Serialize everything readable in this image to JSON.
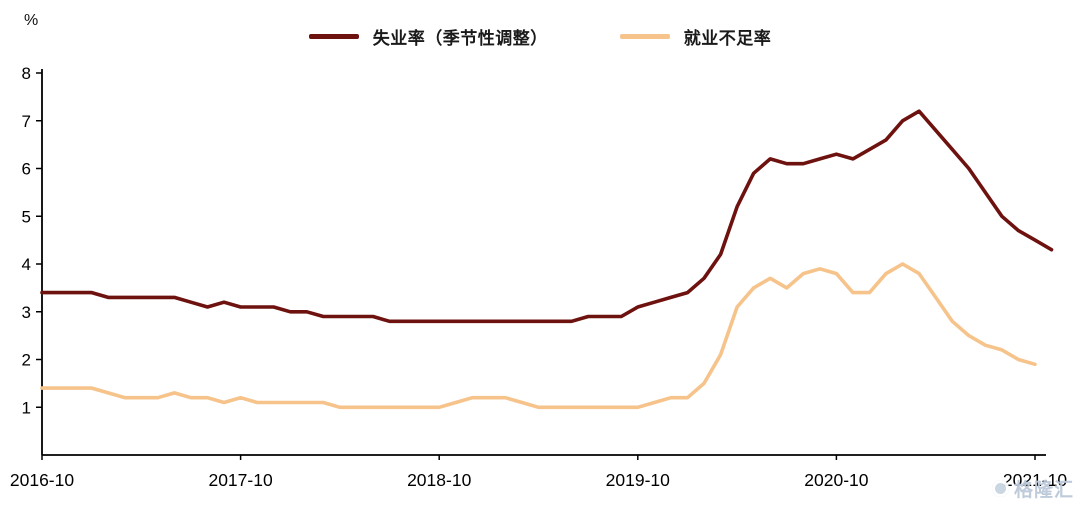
{
  "page": {
    "background": "#ffffff"
  },
  "watermark": {
    "text": "格隆汇"
  },
  "chart_data": {
    "type": "line",
    "title": "",
    "xlabel": "",
    "ylabel": "%",
    "ylim": [
      0,
      8
    ],
    "yticks": [
      1,
      2,
      3,
      4,
      5,
      6,
      7,
      8
    ],
    "grid": false,
    "legend_position": "top",
    "x_unit": "month",
    "x_tick_labels": [
      "2016-10",
      "2017-10",
      "2018-10",
      "2019-10",
      "2020-10",
      "2021-10"
    ],
    "x_tick_positions": [
      0,
      12,
      24,
      36,
      48,
      60
    ],
    "axis_color": "#000000",
    "series": [
      {
        "name": "失业率（季节性调整）",
        "color": "#6e120f",
        "values": [
          3.4,
          3.4,
          3.4,
          3.4,
          3.3,
          3.3,
          3.3,
          3.3,
          3.3,
          3.2,
          3.1,
          3.2,
          3.1,
          3.1,
          3.1,
          3.0,
          3.0,
          2.9,
          2.9,
          2.9,
          2.9,
          2.8,
          2.8,
          2.8,
          2.8,
          2.8,
          2.8,
          2.8,
          2.8,
          2.8,
          2.8,
          2.8,
          2.8,
          2.9,
          2.9,
          2.9,
          3.1,
          3.2,
          3.3,
          3.4,
          3.7,
          4.2,
          5.2,
          5.9,
          6.2,
          6.1,
          6.1,
          6.2,
          6.3,
          6.2,
          6.4,
          6.6,
          7.0,
          7.2,
          6.8,
          6.4,
          6.0,
          5.5,
          5.0,
          4.7,
          4.5,
          4.3
        ]
      },
      {
        "name": "就业不足率",
        "color": "#f6c38b",
        "values": [
          1.4,
          1.4,
          1.4,
          1.4,
          1.3,
          1.2,
          1.2,
          1.2,
          1.3,
          1.2,
          1.2,
          1.1,
          1.2,
          1.1,
          1.1,
          1.1,
          1.1,
          1.1,
          1.0,
          1.0,
          1.0,
          1.0,
          1.0,
          1.0,
          1.0,
          1.1,
          1.2,
          1.2,
          1.2,
          1.1,
          1.0,
          1.0,
          1.0,
          1.0,
          1.0,
          1.0,
          1.0,
          1.1,
          1.2,
          1.2,
          1.5,
          2.1,
          3.1,
          3.5,
          3.7,
          3.5,
          3.8,
          3.9,
          3.8,
          3.4,
          3.4,
          3.8,
          4.0,
          3.8,
          3.3,
          2.8,
          2.5,
          2.3,
          2.2,
          2.0,
          1.9
        ]
      }
    ]
  }
}
